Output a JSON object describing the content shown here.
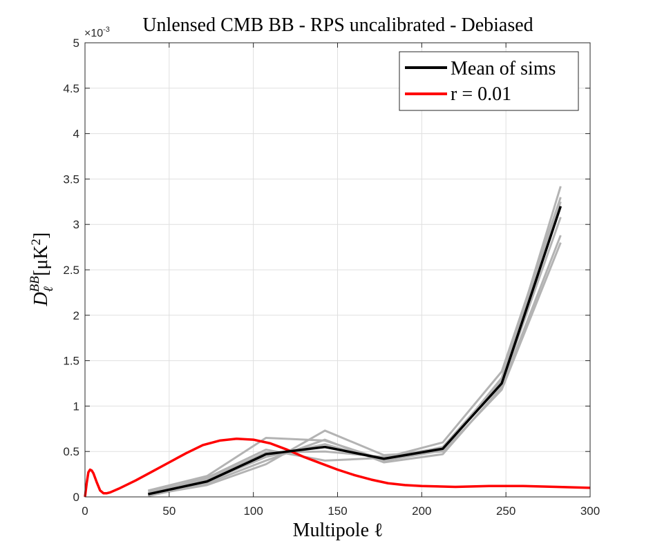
{
  "chart_data": {
    "type": "line",
    "title": "Unlensed CMB BB - RPS uncalibrated - Debiased",
    "xlabel": "Multipole ℓ",
    "ylabel": "D_ℓ^{BB} [μK^2]",
    "ylabel_parts": {
      "base": "D",
      "sub": "ℓ",
      "sup": "BB",
      "unit": "[μK",
      "unit_sup": "2",
      "unit_close": "]"
    },
    "y_exponent_label": "×10",
    "y_exponent_power": "-3",
    "xlim": [
      0,
      300
    ],
    "ylim": [
      0,
      0.005
    ],
    "grid": true,
    "legend_position": "top-right",
    "xticks": [
      0,
      50,
      100,
      150,
      200,
      250,
      300
    ],
    "xtick_labels": [
      "0",
      "50",
      "100",
      "150",
      "200",
      "250",
      "300"
    ],
    "yticks": [
      0,
      0.0005,
      0.001,
      0.0015,
      0.002,
      0.0025,
      0.003,
      0.0035,
      0.004,
      0.0045,
      0.005
    ],
    "ytick_labels": [
      "0",
      "0.5",
      "1",
      "1.5",
      "2",
      "2.5",
      "3",
      "3.5",
      "4",
      "4.5",
      "5"
    ],
    "legend": [
      {
        "name": "Mean of sims",
        "color": "#000000"
      },
      {
        "name": "r = 0.01",
        "color": "#ff0000"
      }
    ],
    "sims_color": "#b3b3b3",
    "sims": [
      {
        "x": [
          37.5,
          72.5,
          107.5,
          142.5,
          177.5,
          212.5,
          247.5,
          282.5
        ],
        "y": [
          7e-05,
          0.00023,
          0.00065,
          0.00062,
          0.00041,
          0.00055,
          0.00128,
          0.00342
        ]
      },
      {
        "x": [
          37.5,
          72.5,
          107.5,
          142.5,
          177.5,
          212.5,
          247.5,
          282.5
        ],
        "y": [
          2e-05,
          0.00013,
          0.00036,
          0.00073,
          0.00046,
          0.0005,
          0.00118,
          0.0028
        ]
      },
      {
        "x": [
          37.5,
          72.5,
          107.5,
          142.5,
          177.5,
          212.5,
          247.5,
          282.5
        ],
        "y": [
          4e-05,
          0.00021,
          0.00052,
          0.0004,
          0.00043,
          0.0006,
          0.00138,
          0.0033
        ]
      },
      {
        "x": [
          37.5,
          72.5,
          107.5,
          142.5,
          177.5,
          212.5,
          247.5,
          282.5
        ],
        "y": [
          1e-05,
          0.00015,
          0.0004,
          0.00063,
          0.00038,
          0.00047,
          0.00121,
          0.00288
        ]
      },
      {
        "x": [
          37.5,
          72.5,
          107.5,
          142.5,
          177.5,
          212.5,
          247.5,
          282.5
        ],
        "y": [
          6e-05,
          0.00019,
          0.00049,
          0.0005,
          0.00044,
          0.00054,
          0.00124,
          0.00308
        ]
      },
      {
        "x": [
          37.5,
          72.5,
          107.5,
          142.5,
          177.5,
          212.5,
          247.5,
          282.5
        ],
        "y": [
          3e-05,
          0.00017,
          0.00044,
          0.00058,
          0.0004,
          0.00051,
          0.00131,
          0.00325
        ]
      }
    ],
    "series": [
      {
        "name": "Mean of sims",
        "color": "#000000",
        "x": [
          37.5,
          72.5,
          107.5,
          142.5,
          177.5,
          212.5,
          247.5,
          282.5
        ],
        "y": [
          3e-05,
          0.00017,
          0.00047,
          0.00055,
          0.00042,
          0.00053,
          0.00125,
          0.0032
        ]
      },
      {
        "name": "r = 0.01",
        "color": "#ff0000",
        "x": [
          0,
          1,
          2,
          3,
          4,
          5,
          7,
          9,
          11,
          13,
          15,
          20,
          30,
          40,
          50,
          60,
          70,
          80,
          90,
          100,
          110,
          120,
          130,
          140,
          150,
          160,
          170,
          180,
          190,
          200,
          220,
          240,
          260,
          280,
          300
        ],
        "y": [
          0,
          0.00015,
          0.00027,
          0.0003,
          0.00029,
          0.00026,
          0.00016,
          7e-05,
          4e-05,
          4e-05,
          5e-05,
          9e-05,
          0.00018,
          0.00028,
          0.00038,
          0.00048,
          0.00057,
          0.00062,
          0.00064,
          0.00063,
          0.00059,
          0.00052,
          0.00044,
          0.00037,
          0.0003,
          0.00024,
          0.00019,
          0.00015,
          0.00013,
          0.00012,
          0.00011,
          0.00012,
          0.00012,
          0.00011,
          0.0001
        ]
      }
    ]
  }
}
